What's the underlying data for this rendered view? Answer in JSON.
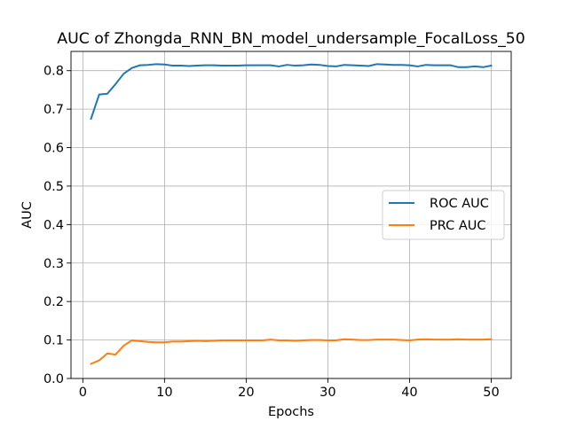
{
  "chart_data": {
    "type": "line",
    "title": "AUC of Zhongda_RNN_BN_model_undersample_FocalLoss_50",
    "xlabel": "Epochs",
    "ylabel": "AUC",
    "xlim": [
      -1.45,
      52.45
    ],
    "ylim": [
      0.0,
      0.85
    ],
    "xticks": [
      0,
      10,
      20,
      30,
      40,
      50
    ],
    "yticks": [
      0.0,
      0.1,
      0.2,
      0.3,
      0.4,
      0.5,
      0.6,
      0.7,
      0.8
    ],
    "grid": true,
    "legend_position": "center-right",
    "x": [
      1,
      2,
      3,
      4,
      5,
      6,
      7,
      8,
      9,
      10,
      11,
      12,
      13,
      14,
      15,
      16,
      17,
      18,
      19,
      20,
      21,
      22,
      23,
      24,
      25,
      26,
      27,
      28,
      29,
      30,
      31,
      32,
      33,
      34,
      35,
      36,
      37,
      38,
      39,
      40,
      41,
      42,
      43,
      44,
      45,
      46,
      47,
      48,
      49,
      50
    ],
    "series": [
      {
        "name": "ROC AUC",
        "color": "#1f77b4",
        "values": [
          0.675,
          0.738,
          0.74,
          0.765,
          0.792,
          0.807,
          0.814,
          0.815,
          0.817,
          0.816,
          0.813,
          0.813,
          0.812,
          0.813,
          0.814,
          0.814,
          0.813,
          0.813,
          0.813,
          0.814,
          0.814,
          0.814,
          0.814,
          0.811,
          0.815,
          0.813,
          0.814,
          0.816,
          0.815,
          0.812,
          0.811,
          0.815,
          0.814,
          0.813,
          0.812,
          0.817,
          0.816,
          0.815,
          0.815,
          0.814,
          0.811,
          0.815,
          0.814,
          0.814,
          0.814,
          0.809,
          0.809,
          0.811,
          0.809,
          0.813
        ]
      },
      {
        "name": "PRC AUC",
        "color": "#ff7f0e",
        "values": [
          0.038,
          0.047,
          0.065,
          0.062,
          0.085,
          0.099,
          0.097,
          0.095,
          0.094,
          0.094,
          0.096,
          0.096,
          0.097,
          0.098,
          0.097,
          0.098,
          0.099,
          0.099,
          0.099,
          0.099,
          0.099,
          0.099,
          0.101,
          0.099,
          0.099,
          0.098,
          0.099,
          0.1,
          0.1,
          0.099,
          0.099,
          0.102,
          0.101,
          0.1,
          0.1,
          0.101,
          0.101,
          0.101,
          0.1,
          0.099,
          0.101,
          0.102,
          0.101,
          0.101,
          0.101,
          0.102,
          0.101,
          0.101,
          0.101,
          0.102
        ]
      }
    ]
  }
}
